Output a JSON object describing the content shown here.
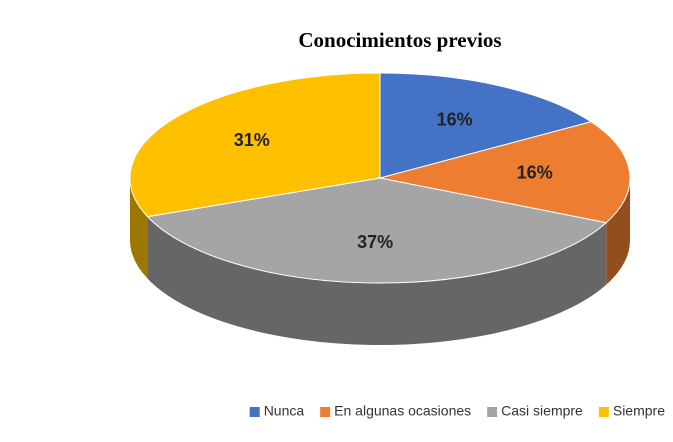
{
  "chart_data": {
    "type": "pie",
    "title": "Conocimientos previos",
    "categories": [
      "Nunca",
      "En algunas ocasiones",
      "Casi siempre",
      "Siempre"
    ],
    "values": [
      16,
      16,
      37,
      31
    ],
    "value_labels": [
      "16%",
      "16%",
      "37%",
      "31%"
    ],
    "colors": [
      "#4472c4",
      "#ed7d31",
      "#a5a5a5",
      "#ffc000"
    ],
    "legend": "bottom"
  }
}
